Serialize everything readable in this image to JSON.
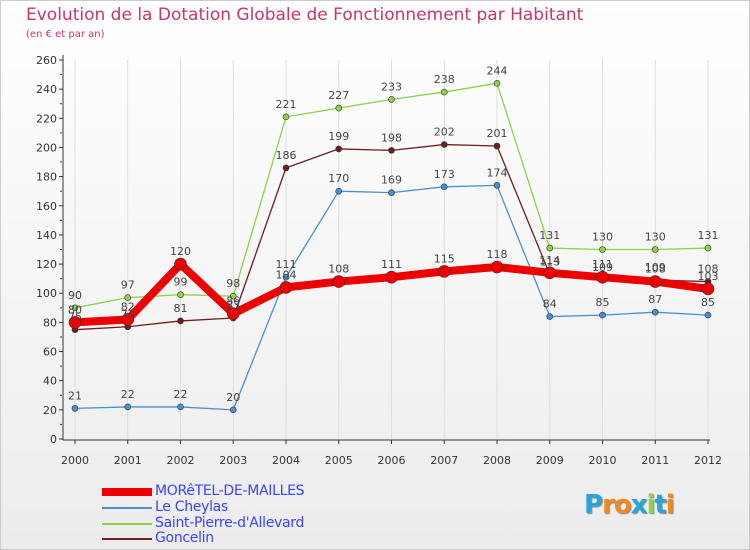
{
  "chart_data": {
    "type": "line",
    "title": "Evolution de la Dotation Globale de Fonctionnement par Habitant",
    "subtitle": "(en € et par an)",
    "xlabel": "",
    "ylabel": "",
    "ylim": [
      0,
      260
    ],
    "y_ticks": [
      0,
      20,
      40,
      60,
      80,
      100,
      120,
      140,
      160,
      180,
      200,
      220,
      240,
      260
    ],
    "grid": "vertical",
    "categories": [
      "2000",
      "2001",
      "2002",
      "2003",
      "2004",
      "2005",
      "2006",
      "2007",
      "2008",
      "2009",
      "2010",
      "2011",
      "2012"
    ],
    "series": [
      {
        "name": "Saint-Pierre-d'Allevard",
        "color": "#8ed24a",
        "values": [
          90,
          97,
          99,
          98,
          221,
          227,
          233,
          238,
          244,
          131,
          130,
          130,
          131
        ]
      },
      {
        "name": "Goncelin",
        "color": "#6d1f1f",
        "values": [
          75,
          77,
          81,
          83,
          186,
          199,
          198,
          202,
          201,
          113,
          109,
          109,
          108
        ]
      },
      {
        "name": "Le Cheylas",
        "color": "#4a90d0",
        "values": [
          21,
          22,
          22,
          20,
          111,
          170,
          169,
          173,
          174,
          84,
          85,
          87,
          85
        ]
      },
      {
        "name": "MORêTEL-DE-MAILLES",
        "color": "#ee0000",
        "values": [
          80,
          82,
          120,
          86,
          104,
          108,
          111,
          115,
          118,
          114,
          111,
          108,
          103
        ]
      }
    ],
    "legend": [
      "MORêTEL-DE-MAILLES",
      "Le Cheylas",
      "Saint-Pierre-d'Allevard",
      "Goncelin"
    ],
    "legend_position": "bottom-left"
  },
  "logo": {
    "letters": [
      "P",
      "r",
      "o",
      "x",
      "i",
      "t",
      "i"
    ],
    "colors": [
      "#2aa5dc",
      "#f08a1c",
      "#f08a1c",
      "#2aa5dc",
      "#8ed24a",
      "#2aa5dc",
      "#f08a1c"
    ]
  }
}
